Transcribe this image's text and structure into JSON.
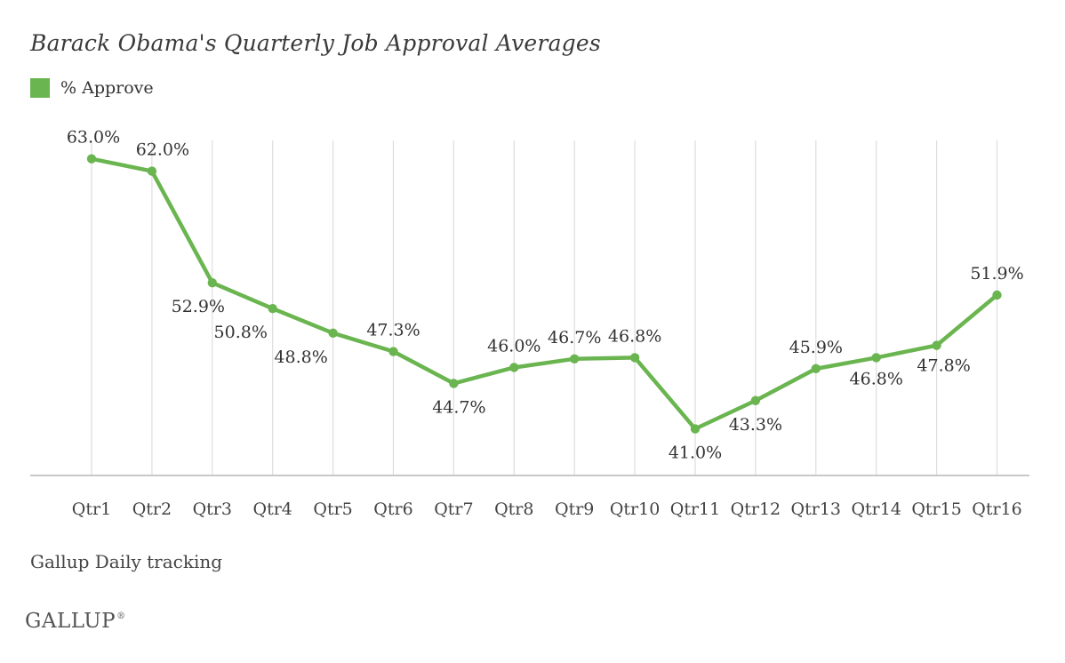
{
  "chart_data": {
    "type": "line",
    "title": "Barack Obama's Quarterly Job Approval Averages",
    "categories": [
      "Qtr1",
      "Qtr2",
      "Qtr3",
      "Qtr4",
      "Qtr5",
      "Qtr6",
      "Qtr7",
      "Qtr8",
      "Qtr9",
      "Qtr10",
      "Qtr11",
      "Qtr12",
      "Qtr13",
      "Qtr14",
      "Qtr15",
      "Qtr16"
    ],
    "series": [
      {
        "name": "% Approve",
        "values": [
          63.0,
          62.0,
          52.9,
          50.8,
          48.8,
          47.3,
          44.7,
          46.0,
          46.7,
          46.8,
          41.0,
          43.3,
          45.9,
          46.8,
          47.8,
          51.9
        ],
        "labels": [
          "63.0%",
          "62.0%",
          "52.9%",
          "50.8%",
          "48.8%",
          "47.3%",
          "44.7%",
          "46.0%",
          "46.7%",
          "46.8%",
          "41.0%",
          "43.3%",
          "45.9%",
          "46.8%",
          "47.8%",
          "51.9%"
        ],
        "label_side": [
          "above",
          "above",
          "below",
          "below",
          "below",
          "above",
          "below",
          "above",
          "above",
          "above",
          "below",
          "below",
          "above",
          "below",
          "below",
          "above"
        ],
        "color": "#6ab550"
      }
    ],
    "ylim": [
      37.2,
      64.5
    ],
    "grid": "vertical",
    "legend": "top-left"
  },
  "legend_label": "% Approve",
  "source": "Gallup Daily tracking",
  "logo": {
    "text": "GALLUP",
    "mark": "®"
  },
  "colors": {
    "line": "#6ab550",
    "grid": "#dddddd",
    "baseline": "#c8c8c8"
  }
}
